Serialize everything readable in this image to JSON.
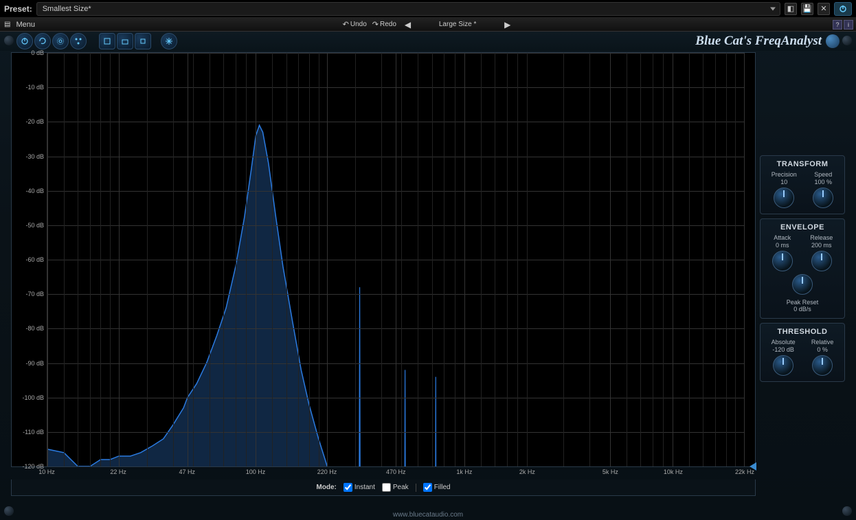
{
  "preset": {
    "label": "Preset:",
    "value": "Smallest Size*"
  },
  "menu": {
    "label": "Menu",
    "undo": "Undo",
    "redo": "Redo",
    "size_display": "Large Size *"
  },
  "brand": "Blue Cat's FreqAnalyst",
  "spectrum": {
    "type": "filled-line-log",
    "x_axis": {
      "scale": "log",
      "min_hz": 10,
      "max_hz": 22000,
      "ticks": [
        {
          "hz": 10,
          "label": "10 Hz"
        },
        {
          "hz": 22,
          "label": "22 Hz"
        },
        {
          "hz": 47,
          "label": "47 Hz"
        },
        {
          "hz": 100,
          "label": "100 Hz"
        },
        {
          "hz": 220,
          "label": "220 Hz"
        },
        {
          "hz": 470,
          "label": "470 Hz"
        },
        {
          "hz": 1000,
          "label": "1k Hz"
        },
        {
          "hz": 2000,
          "label": "2k Hz"
        },
        {
          "hz": 5000,
          "label": "5k Hz"
        },
        {
          "hz": 10000,
          "label": "10k Hz"
        },
        {
          "hz": 22000,
          "label": "22k Hz"
        }
      ],
      "minor_grid_hz": [
        12,
        14,
        16,
        18,
        20,
        30,
        40,
        50,
        60,
        70,
        80,
        90,
        120,
        140,
        160,
        180,
        200,
        300,
        400,
        500,
        600,
        700,
        800,
        900,
        1200,
        1400,
        1600,
        1800,
        2000,
        3000,
        4000,
        6000,
        7000,
        8000,
        9000,
        12000,
        14000,
        16000,
        18000,
        20000
      ]
    },
    "y_axis": {
      "min_db": -120,
      "max_db": 0,
      "ticks": [
        {
          "db": 0,
          "label": "0 dB"
        },
        {
          "db": -10,
          "label": "-10 dB"
        },
        {
          "db": -20,
          "label": "-20 dB"
        },
        {
          "db": -30,
          "label": "-30 dB"
        },
        {
          "db": -40,
          "label": "-40 dB"
        },
        {
          "db": -50,
          "label": "-50 dB"
        },
        {
          "db": -60,
          "label": "-60 dB"
        },
        {
          "db": -70,
          "label": "-70 dB"
        },
        {
          "db": -80,
          "label": "-80 dB"
        },
        {
          "db": -90,
          "label": "-90 dB"
        },
        {
          "db": -100,
          "label": "-100 dB"
        },
        {
          "db": -110,
          "label": "-110 dB"
        },
        {
          "db": -120,
          "label": "-120 dB"
        }
      ]
    },
    "curve_points": [
      {
        "hz": 10,
        "db": -115
      },
      {
        "hz": 12,
        "db": -116
      },
      {
        "hz": 14,
        "db": -120
      },
      {
        "hz": 16,
        "db": -120
      },
      {
        "hz": 18,
        "db": -118
      },
      {
        "hz": 20,
        "db": -118
      },
      {
        "hz": 22,
        "db": -117
      },
      {
        "hz": 25,
        "db": -117
      },
      {
        "hz": 28,
        "db": -116
      },
      {
        "hz": 32,
        "db": -114
      },
      {
        "hz": 36,
        "db": -112
      },
      {
        "hz": 40,
        "db": -108
      },
      {
        "hz": 45,
        "db": -103
      },
      {
        "hz": 47,
        "db": -100
      },
      {
        "hz": 52,
        "db": -96
      },
      {
        "hz": 58,
        "db": -90
      },
      {
        "hz": 65,
        "db": -82
      },
      {
        "hz": 72,
        "db": -74
      },
      {
        "hz": 80,
        "db": -62
      },
      {
        "hz": 88,
        "db": -48
      },
      {
        "hz": 95,
        "db": -34
      },
      {
        "hz": 100,
        "db": -24
      },
      {
        "hz": 104,
        "db": -21
      },
      {
        "hz": 108,
        "db": -23
      },
      {
        "hz": 115,
        "db": -32
      },
      {
        "hz": 125,
        "db": -48
      },
      {
        "hz": 135,
        "db": -62
      },
      {
        "hz": 150,
        "db": -78
      },
      {
        "hz": 165,
        "db": -92
      },
      {
        "hz": 180,
        "db": -102
      },
      {
        "hz": 200,
        "db": -112
      },
      {
        "hz": 215,
        "db": -118
      },
      {
        "hz": 220,
        "db": -120
      }
    ],
    "spikes": [
      {
        "hz": 315,
        "peak_db": -68,
        "width_hz": 3
      },
      {
        "hz": 520,
        "peak_db": -92,
        "width_hz": 3
      },
      {
        "hz": 730,
        "peak_db": -94,
        "width_hz": 3
      }
    ],
    "colors": {
      "line": "#2a7ae0",
      "fill": "#16345a",
      "fill_opacity": 0.75,
      "background": "#000000",
      "grid_major": "#333333",
      "grid_minor": "#1e1e1e"
    },
    "level_marker_db": -120
  },
  "mode_bar": {
    "label": "Mode:",
    "instant": {
      "label": "Instant",
      "checked": true
    },
    "peak": {
      "label": "Peak",
      "checked": false
    },
    "filled": {
      "label": "Filled",
      "checked": true
    }
  },
  "side_panels": {
    "transform": {
      "title": "TRANSFORM",
      "precision": {
        "label": "Precision",
        "value": "10"
      },
      "speed": {
        "label": "Speed",
        "value": "100 %"
      }
    },
    "envelope": {
      "title": "ENVELOPE",
      "attack": {
        "label": "Attack",
        "value": "0 ms"
      },
      "release": {
        "label": "Release",
        "value": "200 ms"
      },
      "peak_reset": {
        "label": "Peak Reset",
        "value": "0 dB/s"
      }
    },
    "threshold": {
      "title": "THRESHOLD",
      "absolute": {
        "label": "Absolute",
        "value": "-120 dB"
      },
      "relative": {
        "label": "Relative",
        "value": "0 %"
      }
    }
  },
  "footer": "www.bluecataudio.com"
}
